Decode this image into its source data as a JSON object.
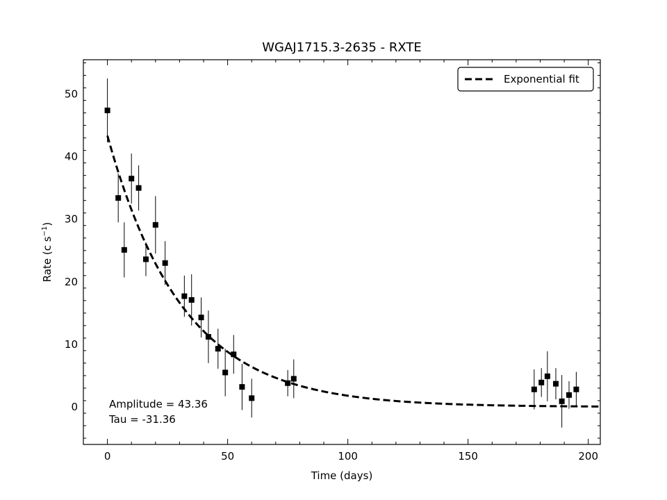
{
  "chart_data": {
    "type": "scatter",
    "title": "WGAJ1715.3-2635 - RXTE",
    "xlabel": "Time (days)",
    "ylabel": "Rate (c s",
    "ylabel_sup": "−1",
    "ylabel_close": ")",
    "xlim": [
      -10,
      205
    ],
    "ylim": [
      -6,
      55.5
    ],
    "xticks": [
      0,
      50,
      100,
      150,
      200
    ],
    "yticks": [
      0,
      10,
      20,
      30,
      40,
      50
    ],
    "grid": false,
    "legend_position": "top-right",
    "series": [
      {
        "kind": "errorbar",
        "points": [
          {
            "x": 0,
            "y": 47.4,
            "err": 5.1
          },
          {
            "x": 4.5,
            "y": 33.4,
            "err": 3.9
          },
          {
            "x": 7,
            "y": 25.1,
            "err": 4.4
          },
          {
            "x": 10,
            "y": 36.5,
            "err": 4.0
          },
          {
            "x": 13,
            "y": 35.0,
            "err": 3.6
          },
          {
            "x": 16,
            "y": 23.6,
            "err": 2.7
          },
          {
            "x": 20,
            "y": 29.1,
            "err": 4.6
          },
          {
            "x": 24,
            "y": 23.0,
            "err": 3.5
          },
          {
            "x": 32,
            "y": 17.7,
            "err": 3.3
          },
          {
            "x": 35,
            "y": 17.1,
            "err": 4.1
          },
          {
            "x": 39,
            "y": 14.3,
            "err": 3.2
          },
          {
            "x": 42,
            "y": 11.2,
            "err": 4.2
          },
          {
            "x": 46,
            "y": 9.3,
            "err": 3.2
          },
          {
            "x": 49,
            "y": 5.5,
            "err": 3.8
          },
          {
            "x": 52.5,
            "y": 8.4,
            "err": 3.1
          },
          {
            "x": 56,
            "y": 3.2,
            "err": 3.7
          },
          {
            "x": 60,
            "y": 1.4,
            "err": 3.1
          },
          {
            "x": 75,
            "y": 3.8,
            "err": 2.1
          },
          {
            "x": 77.5,
            "y": 4.5,
            "err": 3.1
          },
          {
            "x": 177.5,
            "y": 2.8,
            "err": 3.2
          },
          {
            "x": 180.5,
            "y": 3.9,
            "err": 2.3
          },
          {
            "x": 183,
            "y": 4.9,
            "err": 4.0
          },
          {
            "x": 186.5,
            "y": 3.7,
            "err": 2.5
          },
          {
            "x": 189,
            "y": 0.9,
            "err": 4.2
          },
          {
            "x": 192,
            "y": 1.9,
            "err": 2.2
          },
          {
            "x": 195,
            "y": 2.8,
            "err": 2.8
          }
        ]
      },
      {
        "kind": "fit",
        "name": "Exponential fit",
        "model": "A*exp(x/tau)",
        "amplitude": 43.36,
        "tau": -31.36,
        "x_range": [
          0,
          205
        ]
      }
    ],
    "annotations": [
      "Amplitude = 43.36",
      "Tau = -31.36"
    ]
  }
}
